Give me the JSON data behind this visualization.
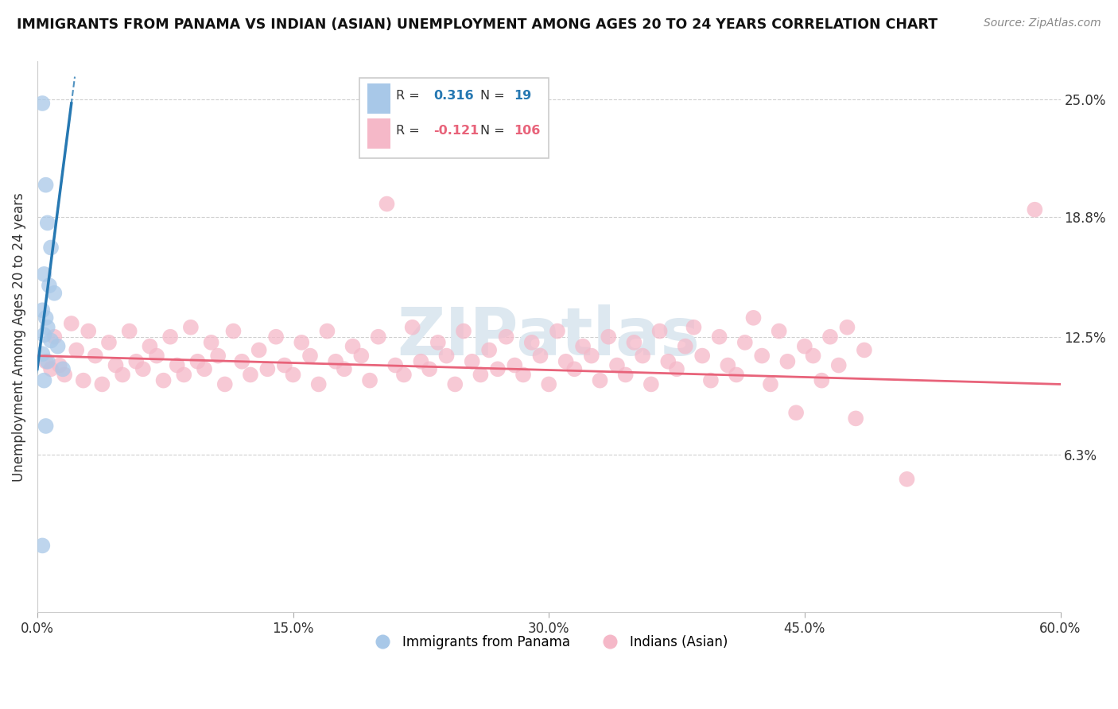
{
  "title": "IMMIGRANTS FROM PANAMA VS INDIAN (ASIAN) UNEMPLOYMENT AMONG AGES 20 TO 24 YEARS CORRELATION CHART",
  "source": "Source: ZipAtlas.com",
  "ylabel": "Unemployment Among Ages 20 to 24 years",
  "xlim": [
    0.0,
    60.0
  ],
  "ylim": [
    -2.0,
    27.0
  ],
  "blue_R": 0.316,
  "blue_N": 19,
  "pink_R": -0.121,
  "pink_N": 106,
  "legend_label_blue": "Immigrants from Panama",
  "legend_label_pink": "Indians (Asian)",
  "blue_points": [
    [
      0.3,
      24.8
    ],
    [
      0.5,
      20.5
    ],
    [
      0.6,
      18.5
    ],
    [
      0.8,
      17.2
    ],
    [
      0.4,
      15.8
    ],
    [
      0.7,
      15.2
    ],
    [
      1.0,
      14.8
    ],
    [
      0.3,
      13.9
    ],
    [
      0.5,
      13.5
    ],
    [
      0.6,
      13.0
    ],
    [
      0.4,
      12.6
    ],
    [
      0.8,
      12.3
    ],
    [
      1.2,
      12.0
    ],
    [
      0.3,
      11.6
    ],
    [
      0.6,
      11.2
    ],
    [
      1.5,
      10.8
    ],
    [
      0.4,
      10.2
    ],
    [
      0.5,
      7.8
    ],
    [
      0.3,
      1.5
    ]
  ],
  "pink_points": [
    [
      0.5,
      11.2
    ],
    [
      0.8,
      10.8
    ],
    [
      1.0,
      12.5
    ],
    [
      1.3,
      11.0
    ],
    [
      1.6,
      10.5
    ],
    [
      2.0,
      13.2
    ],
    [
      2.3,
      11.8
    ],
    [
      2.7,
      10.2
    ],
    [
      3.0,
      12.8
    ],
    [
      3.4,
      11.5
    ],
    [
      3.8,
      10.0
    ],
    [
      4.2,
      12.2
    ],
    [
      4.6,
      11.0
    ],
    [
      5.0,
      10.5
    ],
    [
      5.4,
      12.8
    ],
    [
      5.8,
      11.2
    ],
    [
      6.2,
      10.8
    ],
    [
      6.6,
      12.0
    ],
    [
      7.0,
      11.5
    ],
    [
      7.4,
      10.2
    ],
    [
      7.8,
      12.5
    ],
    [
      8.2,
      11.0
    ],
    [
      8.6,
      10.5
    ],
    [
      9.0,
      13.0
    ],
    [
      9.4,
      11.2
    ],
    [
      9.8,
      10.8
    ],
    [
      10.2,
      12.2
    ],
    [
      10.6,
      11.5
    ],
    [
      11.0,
      10.0
    ],
    [
      11.5,
      12.8
    ],
    [
      12.0,
      11.2
    ],
    [
      12.5,
      10.5
    ],
    [
      13.0,
      11.8
    ],
    [
      13.5,
      10.8
    ],
    [
      14.0,
      12.5
    ],
    [
      14.5,
      11.0
    ],
    [
      15.0,
      10.5
    ],
    [
      15.5,
      12.2
    ],
    [
      16.0,
      11.5
    ],
    [
      16.5,
      10.0
    ],
    [
      17.0,
      12.8
    ],
    [
      17.5,
      11.2
    ],
    [
      18.0,
      10.8
    ],
    [
      18.5,
      12.0
    ],
    [
      19.0,
      11.5
    ],
    [
      19.5,
      10.2
    ],
    [
      20.0,
      12.5
    ],
    [
      20.5,
      19.5
    ],
    [
      21.0,
      11.0
    ],
    [
      21.5,
      10.5
    ],
    [
      22.0,
      13.0
    ],
    [
      22.5,
      11.2
    ],
    [
      23.0,
      10.8
    ],
    [
      23.5,
      12.2
    ],
    [
      24.0,
      11.5
    ],
    [
      24.5,
      10.0
    ],
    [
      25.0,
      12.8
    ],
    [
      25.5,
      11.2
    ],
    [
      26.0,
      10.5
    ],
    [
      26.5,
      11.8
    ],
    [
      27.0,
      10.8
    ],
    [
      27.5,
      12.5
    ],
    [
      28.0,
      11.0
    ],
    [
      28.5,
      10.5
    ],
    [
      29.0,
      12.2
    ],
    [
      29.5,
      11.5
    ],
    [
      30.0,
      10.0
    ],
    [
      30.5,
      12.8
    ],
    [
      31.0,
      11.2
    ],
    [
      31.5,
      10.8
    ],
    [
      32.0,
      12.0
    ],
    [
      32.5,
      11.5
    ],
    [
      33.0,
      10.2
    ],
    [
      33.5,
      12.5
    ],
    [
      34.0,
      11.0
    ],
    [
      34.5,
      10.5
    ],
    [
      35.0,
      12.2
    ],
    [
      35.5,
      11.5
    ],
    [
      36.0,
      10.0
    ],
    [
      36.5,
      12.8
    ],
    [
      37.0,
      11.2
    ],
    [
      37.5,
      10.8
    ],
    [
      38.0,
      12.0
    ],
    [
      38.5,
      13.0
    ],
    [
      39.0,
      11.5
    ],
    [
      39.5,
      10.2
    ],
    [
      40.0,
      12.5
    ],
    [
      40.5,
      11.0
    ],
    [
      41.0,
      10.5
    ],
    [
      41.5,
      12.2
    ],
    [
      42.0,
      13.5
    ],
    [
      42.5,
      11.5
    ],
    [
      43.0,
      10.0
    ],
    [
      43.5,
      12.8
    ],
    [
      44.0,
      11.2
    ],
    [
      44.5,
      8.5
    ],
    [
      45.0,
      12.0
    ],
    [
      45.5,
      11.5
    ],
    [
      46.0,
      10.2
    ],
    [
      46.5,
      12.5
    ],
    [
      47.0,
      11.0
    ],
    [
      47.5,
      13.0
    ],
    [
      48.0,
      8.2
    ],
    [
      48.5,
      11.8
    ],
    [
      51.0,
      5.0
    ],
    [
      58.5,
      19.2
    ]
  ],
  "blue_color": "#a8c8e8",
  "pink_color": "#f5b8c8",
  "blue_line_color": "#2678b2",
  "pink_line_color": "#e8637a",
  "grid_color": "#d0d0d0",
  "bg_color": "#ffffff",
  "watermark_color": "#dde8f0",
  "ytick_vals": [
    6.3,
    12.5,
    18.8,
    25.0
  ],
  "xtick_vals": [
    0,
    15,
    30,
    45,
    60
  ],
  "xtick_labels": [
    "0.0%",
    "15.0%",
    "30.0%",
    "45.0%",
    "60.0%"
  ]
}
